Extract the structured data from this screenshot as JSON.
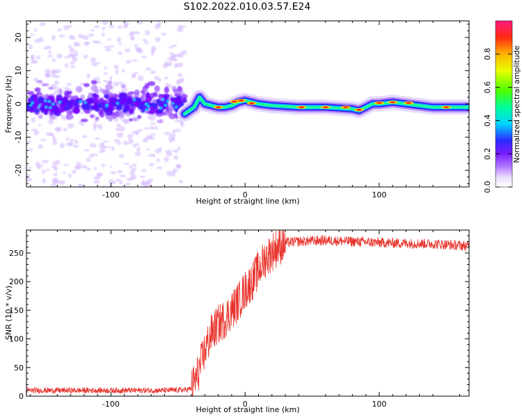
{
  "title": "S102.2022.010.03.57.E24",
  "chart_data": [
    {
      "type": "heatmap",
      "name": "spectrogram",
      "xlabel": "Height of straight line (km)",
      "ylabel": "Frequency (Hz)",
      "xlim": [
        -163,
        167
      ],
      "ylim": [
        -25,
        25
      ],
      "xticks": [
        -100,
        0,
        100
      ],
      "xtick_labels": [
        "-100",
        "0",
        "100"
      ],
      "yticks": [
        -20,
        -10,
        0,
        10,
        20
      ],
      "ytick_labels": [
        "-20",
        "-10",
        "0",
        "10",
        "20"
      ],
      "noise_region_x": [
        -163,
        -45
      ],
      "signal_ridge": {
        "x": [
          -45,
          -38,
          -34,
          -30,
          -25,
          -20,
          -15,
          -10,
          -5,
          0,
          10,
          20,
          40,
          60,
          80,
          85,
          90,
          95,
          100,
          110,
          120,
          140,
          167
        ],
        "y_hz": [
          -3,
          -1,
          2,
          0,
          -0.5,
          -1,
          -1,
          -0.5,
          0.5,
          1,
          0,
          -0.5,
          -1,
          -1,
          -1.5,
          -2,
          -1,
          0,
          0,
          0.5,
          0,
          -1,
          -1
        ]
      },
      "colorbar": {
        "label": "Normalized spectral amplitude",
        "range": [
          0.0,
          1.0
        ],
        "ticks": [
          0.0,
          0.2,
          0.4,
          0.6,
          0.8
        ],
        "tick_labels": [
          "0.0",
          "0.2",
          "0.4",
          "0.6",
          "0.8"
        ]
      }
    },
    {
      "type": "line",
      "name": "snr",
      "xlabel": "Height of straight line (km)",
      "ylabel": "SNR (10 * v/v)",
      "xlim": [
        -163,
        167
      ],
      "ylim": [
        0,
        290
      ],
      "xticks": [
        -100,
        0,
        100
      ],
      "xtick_labels": [
        "-100",
        "0",
        "100"
      ],
      "yticks": [
        0,
        50,
        100,
        150,
        200,
        250
      ],
      "ytick_labels": [
        "0",
        "50",
        "100",
        "150",
        "200",
        "250"
      ],
      "series": [
        {
          "name": "SNR",
          "color": "#e8322b",
          "x": [
            -163,
            -140,
            -120,
            -100,
            -80,
            -60,
            -45,
            -40,
            -35,
            -30,
            -25,
            -20,
            -15,
            -10,
            -5,
            0,
            5,
            10,
            15,
            20,
            25,
            30,
            40,
            60,
            80,
            100,
            120,
            140,
            167
          ],
          "y": [
            10,
            10,
            10,
            10,
            10,
            10,
            11,
            13,
            40,
            80,
            110,
            125,
            135,
            150,
            165,
            185,
            200,
            220,
            240,
            252,
            262,
            268,
            270,
            272,
            270,
            268,
            267,
            266,
            262
          ]
        }
      ]
    }
  ]
}
